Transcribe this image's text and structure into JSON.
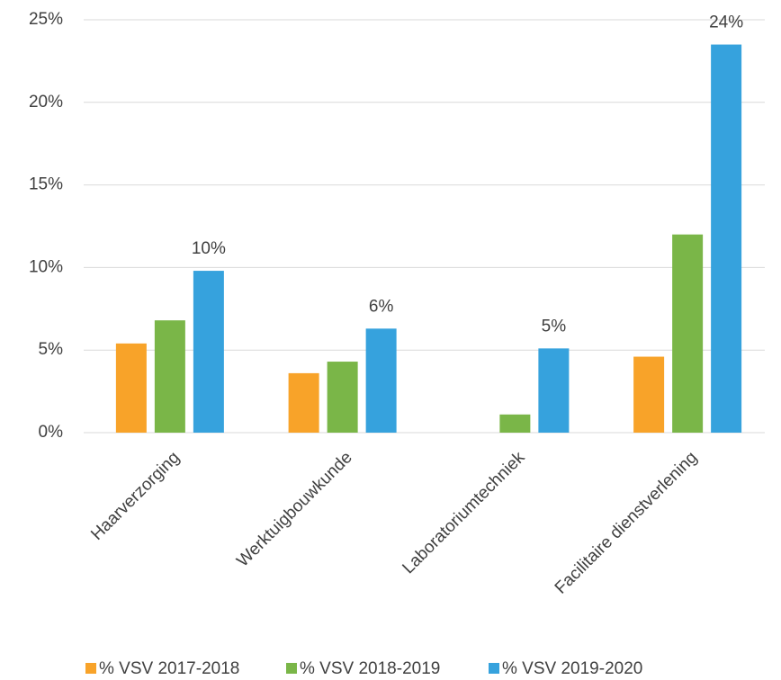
{
  "chart_data": {
    "type": "bar",
    "categories": [
      "Haarverzorging",
      "Werktuigbouwkunde",
      "Laboratoriumtechniek",
      "Facilitaire dienstverlening"
    ],
    "series": [
      {
        "name": "% VSV 2017-2018",
        "color": "#f8a329",
        "values": [
          5.4,
          3.6,
          null,
          4.6
        ]
      },
      {
        "name": "% VSV 2018-2019",
        "color": "#7ab648",
        "values": [
          6.8,
          4.3,
          1.1,
          12.0
        ]
      },
      {
        "name": "% VSV 2019-2020",
        "color": "#36a2dd",
        "values": [
          9.8,
          6.3,
          5.1,
          23.5
        ],
        "value_labels": [
          "10%",
          "6%",
          "5%",
          "24%"
        ]
      }
    ],
    "ylim": [
      0,
      25
    ],
    "yticks": [
      {
        "value": 0,
        "label": "0%"
      },
      {
        "value": 5,
        "label": "5%"
      },
      {
        "value": 10,
        "label": "10%"
      },
      {
        "value": 15,
        "label": "15%"
      },
      {
        "value": 20,
        "label": "20%"
      },
      {
        "value": 25,
        "label": "25%"
      }
    ],
    "grid": true,
    "legend": "bottom"
  }
}
